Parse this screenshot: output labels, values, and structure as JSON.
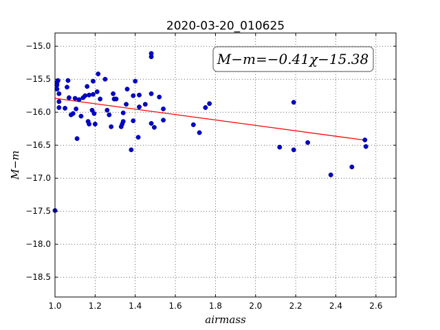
{
  "chart_data": {
    "type": "scatter",
    "title": "2020-03-20_010625",
    "xlabel": "airmass",
    "ylabel": "M−m",
    "xlim": [
      1.0,
      2.7
    ],
    "ylim": [
      -18.8,
      -14.8
    ],
    "xticks": [
      "1.0",
      "1.2",
      "1.4",
      "1.6",
      "1.8",
      "2.0",
      "2.2",
      "2.4",
      "2.6"
    ],
    "yticks": [
      "−15.0",
      "−15.5",
      "−16.0",
      "−16.5",
      "−17.0",
      "−17.5",
      "−18.0",
      "−18.5"
    ],
    "grid": true,
    "annotation": "M−m=−0.41χ−15.38",
    "point_color": "#0000cc",
    "fit_color": "#ff0000",
    "fit": {
      "slope": -0.41,
      "intercept": -15.38,
      "x_range": [
        1.0,
        2.545
      ]
    },
    "points": [
      [
        1.0,
        -17.49
      ],
      [
        1.01,
        -15.55
      ],
      [
        1.01,
        -15.59
      ],
      [
        1.01,
        -15.65
      ],
      [
        1.015,
        -15.52
      ],
      [
        1.02,
        -15.72
      ],
      [
        1.02,
        -15.84
      ],
      [
        1.02,
        -15.93
      ],
      [
        1.05,
        -15.94
      ],
      [
        1.06,
        -15.62
      ],
      [
        1.065,
        -15.52
      ],
      [
        1.07,
        -15.78
      ],
      [
        1.08,
        -16.04
      ],
      [
        1.09,
        -16.02
      ],
      [
        1.1,
        -15.79
      ],
      [
        1.105,
        -15.95
      ],
      [
        1.11,
        -16.4
      ],
      [
        1.12,
        -15.81
      ],
      [
        1.13,
        -16.06
      ],
      [
        1.14,
        -15.78
      ],
      [
        1.15,
        -15.75
      ],
      [
        1.16,
        -15.61
      ],
      [
        1.165,
        -16.14
      ],
      [
        1.17,
        -16.18
      ],
      [
        1.17,
        -15.74
      ],
      [
        1.185,
        -15.97
      ],
      [
        1.19,
        -15.53
      ],
      [
        1.19,
        -15.73
      ],
      [
        1.195,
        -16.02
      ],
      [
        1.2,
        -16.18
      ],
      [
        1.21,
        -15.69
      ],
      [
        1.215,
        -15.42
      ],
      [
        1.225,
        -15.8
      ],
      [
        1.25,
        -15.5
      ],
      [
        1.26,
        -15.97
      ],
      [
        1.27,
        -16.04
      ],
      [
        1.28,
        -16.22
      ],
      [
        1.29,
        -15.72
      ],
      [
        1.295,
        -15.8
      ],
      [
        1.305,
        -15.8
      ],
      [
        1.33,
        -16.22
      ],
      [
        1.335,
        -16.18
      ],
      [
        1.34,
        -16.14
      ],
      [
        1.34,
        -16.01
      ],
      [
        1.355,
        -15.88
      ],
      [
        1.36,
        -15.65
      ],
      [
        1.38,
        -16.57
      ],
      [
        1.39,
        -16.13
      ],
      [
        1.39,
        -15.75
      ],
      [
        1.4,
        -15.53
      ],
      [
        1.415,
        -16.38
      ],
      [
        1.42,
        -15.74
      ],
      [
        1.42,
        -15.92
      ],
      [
        1.45,
        -15.88
      ],
      [
        1.48,
        -15.11
      ],
      [
        1.48,
        -15.16
      ],
      [
        1.48,
        -15.72
      ],
      [
        1.48,
        -16.17
      ],
      [
        1.495,
        -16.23
      ],
      [
        1.52,
        -15.77
      ],
      [
        1.54,
        -16.12
      ],
      [
        1.54,
        -15.95
      ],
      [
        1.69,
        -16.19
      ],
      [
        1.72,
        -16.31
      ],
      [
        1.75,
        -15.93
      ],
      [
        1.77,
        -15.87
      ],
      [
        2.12,
        -16.53
      ],
      [
        2.19,
        -16.57
      ],
      [
        2.19,
        -15.85
      ],
      [
        2.26,
        -16.46
      ],
      [
        2.375,
        -16.95
      ],
      [
        2.48,
        -16.83
      ],
      [
        2.545,
        -16.42
      ],
      [
        2.55,
        -16.52
      ]
    ]
  }
}
